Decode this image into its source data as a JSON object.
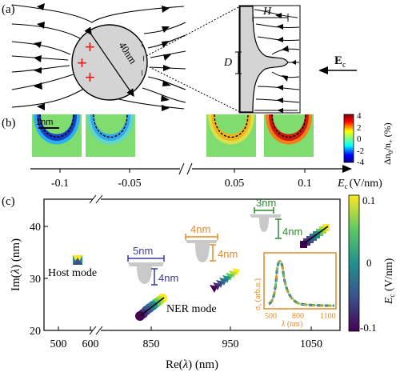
{
  "panel_a": {
    "label": "(a)",
    "diameter": "40nm",
    "H": "H",
    "D": "D",
    "field": "E",
    "field_sub": "c",
    "plus": [
      "+",
      "+",
      "+"
    ],
    "minus": [
      "−",
      "−",
      "−"
    ]
  },
  "panel_b": {
    "label": "(b)",
    "scale": "1nm",
    "ticks": [
      "-0.1",
      "-0.05",
      "0.05",
      "0.1"
    ],
    "axis_E": "E",
    "axis_sub": "c",
    "axis_unit": "(V/nm)",
    "cbar_ticks": [
      "4",
      "2",
      "0",
      "-2",
      "-4"
    ],
    "cbar_title_delta": "Δn",
    "cbar_sub0": "0",
    "cbar_slash": "/n",
    "cbar_subplus": "+",
    "cbar_pct": "(%)",
    "heatmaps": [
      {
        "E": -0.1,
        "rim": "#1a3fc4",
        "mid": "#2ab0f0"
      },
      {
        "E": -0.05,
        "rim": "#35a8ec",
        "mid": "#5fd6c8"
      },
      {
        "E": 0.05,
        "rim": "#f2b51c",
        "mid": "#d9e04a"
      },
      {
        "E": 0.1,
        "rim": "#cc1a0d",
        "mid": "#f47d1a"
      }
    ],
    "colors": {
      "background": "#7fdc6e"
    }
  },
  "panel_c": {
    "label": "(c)",
    "xlabel_re": "Re(",
    "xlabel_lambda": "λ",
    "xlabel_unit": ") (nm)",
    "ylabel_im": "Im(",
    "ylabel_lambda": "λ",
    "ylabel_unit": ") (nm)",
    "xticks": [
      "500",
      "600",
      "850",
      "950",
      "1050"
    ],
    "yticks": [
      "40",
      "30",
      "20"
    ],
    "cbar_ticks": [
      "0.1",
      "0",
      "-0.1"
    ],
    "cbar_label": "E",
    "cbar_sub": "c",
    "cbar_unit": " (V/nm)",
    "host_mode": "Host mode",
    "ner_mode": "NER mode",
    "dims_a": [
      "5nm",
      "4nm"
    ],
    "dims_b": [
      "4nm",
      "4nm"
    ],
    "dims_c": [
      "3nm",
      "4nm"
    ],
    "inset": {
      "ylabel": "σ",
      "ylabel_sub": "s",
      "ylabel_unit": " (arb.u.)",
      "xlabel": "λ",
      "xlabel_unit": " (nm)",
      "xticks": [
        "500",
        "800",
        "1100"
      ]
    },
    "colors": {
      "blue_dim": "#3a3a9e",
      "orange_dim": "#e48a24",
      "green_dim": "#2a8a2a"
    }
  }
}
